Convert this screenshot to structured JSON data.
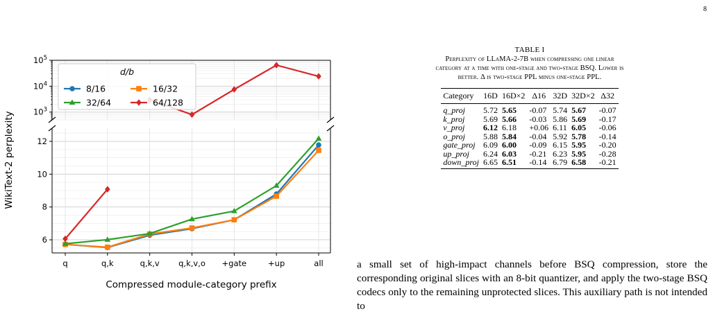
{
  "page_number": "8",
  "chart_data": {
    "type": "line",
    "xlabel": "Compressed module-category prefix",
    "ylabel": "WikiText-2 perplexity",
    "categories": [
      "q",
      "q,k",
      "q,k,v",
      "q,k,v,o",
      "+gate",
      "+up",
      "all"
    ],
    "legend_title": "d/b",
    "legend_placement": "top-left",
    "broken_y_axis": true,
    "top_panel": {
      "scale": "log",
      "ylim": [
        500,
        100000
      ],
      "tick_labels": [
        "10^3",
        "10^4",
        "10^5"
      ]
    },
    "bottom_panel": {
      "scale": "linear",
      "ylim": [
        5.2,
        12.8
      ],
      "ticks": [
        6,
        8,
        10,
        12
      ]
    },
    "grid": true,
    "series": [
      {
        "name": "8/16",
        "color": "#1f77b4",
        "marker": "circle",
        "values": [
          5.72,
          5.53,
          6.28,
          6.68,
          7.22,
          8.79,
          11.78
        ]
      },
      {
        "name": "16/32",
        "color": "#ff7f0e",
        "marker": "square",
        "values": [
          5.72,
          5.55,
          6.35,
          6.72,
          7.22,
          8.66,
          11.45
        ]
      },
      {
        "name": "32/64",
        "color": "#2ca02c",
        "marker": "triangle",
        "values": [
          5.76,
          6.01,
          6.38,
          7.26,
          7.75,
          9.3,
          12.17
        ]
      },
      {
        "name": "64/128",
        "color": "#d62728",
        "marker": "diamond",
        "values": [
          6.06,
          9.08,
          3000,
          800,
          7500,
          65000,
          24000
        ]
      }
    ]
  },
  "table": {
    "title": "TABLE I",
    "caption": "Perplexity of LLaMA-2-7B when compressing one linear category at a time with one-stage and two-stage BSQ. Lower is better. Δ is two-stage PPL minus one-stage PPL.",
    "caption_line1": "Perplexity of LLaMA-2-7B when compressing one linear",
    "caption_line2": "category at a time with one-stage and two-stage BSQ. Lower is",
    "caption_line3": "better. Δ is two-stage PPL minus one-stage PPL.",
    "headers": [
      "Category",
      "16D",
      "16D×2",
      "Δ16",
      "32D",
      "32D×2",
      "Δ32"
    ],
    "rows": [
      {
        "category": "q_proj",
        "d16": "5.72",
        "d16x2": "5.65",
        "delta16": "-0.07",
        "d32": "5.74",
        "d32x2": "5.67",
        "delta32": "-0.07"
      },
      {
        "category": "k_proj",
        "d16": "5.69",
        "d16x2": "5.66",
        "delta16": "-0.03",
        "d32": "5.86",
        "d32x2": "5.69",
        "delta32": "-0.17"
      },
      {
        "category": "v_proj",
        "d16": "6.12",
        "d16x2": "6.18",
        "delta16": "+0.06",
        "d32": "6.11",
        "d32x2": "6.05",
        "delta32": "-0.06"
      },
      {
        "category": "o_proj",
        "d16": "5.88",
        "d16x2": "5.84",
        "delta16": "-0.04",
        "d32": "5.92",
        "d32x2": "5.78",
        "delta32": "-0.14"
      },
      {
        "category": "gate_proj",
        "d16": "6.09",
        "d16x2": "6.00",
        "delta16": "-0.09",
        "d32": "6.15",
        "d32x2": "5.95",
        "delta32": "-0.20"
      },
      {
        "category": "up_proj",
        "d16": "6.24",
        "d16x2": "6.03",
        "delta16": "-0.21",
        "d32": "6.23",
        "d32x2": "5.95",
        "delta32": "-0.28"
      },
      {
        "category": "down_proj",
        "d16": "6.65",
        "d16x2": "6.51",
        "delta16": "-0.14",
        "d32": "6.79",
        "d32x2": "6.58",
        "delta32": "-0.21"
      }
    ],
    "bold": {
      "q_proj": [
        "d16x2",
        "d32x2"
      ],
      "k_proj": [
        "d16x2",
        "d32x2"
      ],
      "v_proj": [
        "d16",
        "d32x2"
      ],
      "o_proj": [
        "d16x2",
        "d32x2"
      ],
      "gate_proj": [
        "d16x2",
        "d32x2"
      ],
      "up_proj": [
        "d16x2",
        "d32x2"
      ],
      "down_proj": [
        "d16x2",
        "d32x2"
      ]
    }
  },
  "body_text": "a small set of high-impact channels before BSQ compression, store the corresponding original slices with an 8-bit quantizer, and apply the two-stage BSQ codecs only to the remaining unprotected slices. This auxiliary path is not intended to"
}
